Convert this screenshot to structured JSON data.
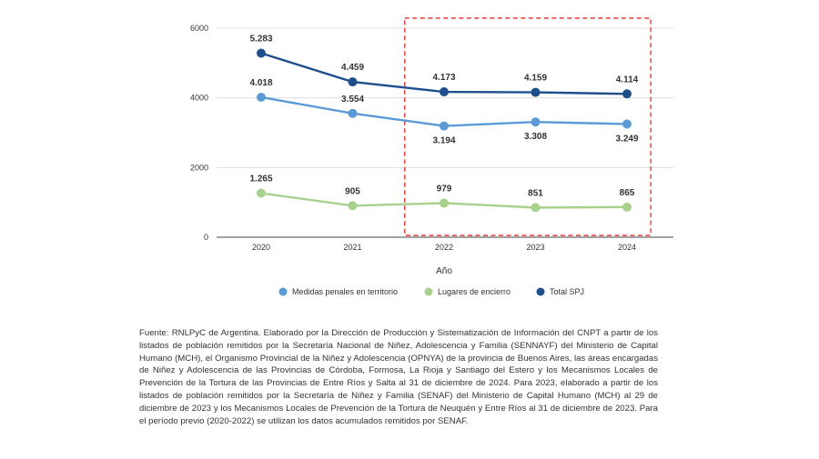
{
  "chart_data": {
    "type": "line",
    "title": "",
    "xlabel": "Año",
    "ylabel": "",
    "categories": [
      "2020",
      "2021",
      "2022",
      "2023",
      "2024"
    ],
    "ylim": [
      0,
      6000
    ],
    "yticks": [
      0,
      2000,
      4000,
      6000
    ],
    "grid": true,
    "legend_position": "bottom",
    "highlight": {
      "from_category": "2022",
      "to_category": "2024",
      "style": "dashed red rectangle",
      "color": "#e53935"
    },
    "series": [
      {
        "name": "Medidas penales en territorio",
        "color": "#5b9bd5",
        "values": [
          4018,
          3554,
          3194,
          3308,
          3249
        ],
        "labels": [
          "4.018",
          "3.554",
          "3.194",
          "3.308",
          "3.249"
        ],
        "label_side": [
          "above",
          "above",
          "below",
          "below",
          "below"
        ]
      },
      {
        "name": "Lugares de encierro",
        "color": "#a9d18e",
        "values": [
          1265,
          905,
          979,
          851,
          865
        ],
        "labels": [
          "1.265",
          "905",
          "979",
          "851",
          "865"
        ],
        "label_side": [
          "above",
          "above",
          "above",
          "above",
          "above"
        ]
      },
      {
        "name": "Total SPJ",
        "color": "#1f4e8c",
        "values": [
          5283,
          4459,
          4173,
          4159,
          4114
        ],
        "labels": [
          "5.283",
          "4.459",
          "4.173",
          "4.159",
          "4.114"
        ],
        "label_side": [
          "above",
          "above",
          "above",
          "above",
          "above"
        ]
      }
    ]
  },
  "source_note": "Fuente: RNLPyC de Argentina. Elaborado por la Dirección de Producción y Sistematización de Información del CNPT a partir de los listados de población remitidos por la Secretaría Nacional de Niñez, Adolescencia y Familia (SENNAYF) del Ministerio de Capital Humano (MCH), el Organismo Provincial de la Niñez y Adolescencia (OPNYA) de la provincia de Buenos Aires, las áreas encargadas de Niñez y Adolescencia de las Provincias de Córdoba, Formosa, La Rioja y Santiago del Estero y los Mecanismos Locales de Prevención de la Tortura de las Provincias de Entre Ríos y Salta al 31 de diciembre de 2024. Para 2023, elaborado a partir de los listados de población remitidos por la Secretaría de Niñez y Familia (SENAF) del Ministerio de Capital Humano (MCH) al 29 de diciembre de 2023 y los Mecanismos Locales de Prevención de la Tortura de Neuquén y Entre Ríos al 31 de diciembre de 2023. Para el período previo (2020-2022) se utilizan los datos acumulados remitidos por SENAF."
}
